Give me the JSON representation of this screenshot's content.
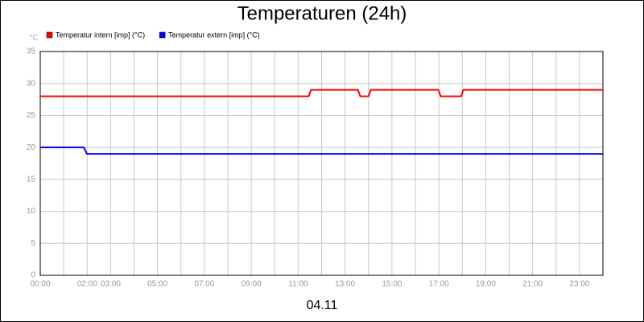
{
  "chart_data": {
    "type": "line",
    "title": "Temperaturen (24h)",
    "y_unit": "°C",
    "x_label": "04.11",
    "xlim": [
      0,
      24
    ],
    "ylim": [
      0,
      35
    ],
    "yticks": [
      0,
      5,
      10,
      15,
      20,
      25,
      30,
      35
    ],
    "xticks": [
      {
        "value": 0,
        "label": "00:00"
      },
      {
        "value": 2,
        "label": "02:00"
      },
      {
        "value": 3,
        "label": "03:00"
      },
      {
        "value": 5,
        "label": "05:00"
      },
      {
        "value": 7,
        "label": "07:00"
      },
      {
        "value": 9,
        "label": "09:00"
      },
      {
        "value": 11,
        "label": "11:00"
      },
      {
        "value": 13,
        "label": "13:00"
      },
      {
        "value": 15,
        "label": "15:00"
      },
      {
        "value": 17,
        "label": "17:00"
      },
      {
        "value": 19,
        "label": "19:00"
      },
      {
        "value": 21,
        "label": "21:00"
      },
      {
        "value": 23,
        "label": "23:00"
      }
    ],
    "xminor": [
      1,
      4,
      6,
      8,
      10,
      12,
      14,
      16,
      18,
      20,
      22,
      24
    ],
    "grid": true,
    "series": [
      {
        "name": "Temperatur intern [imp] (°C)",
        "color": "#ff0000",
        "x": [
          0,
          11.45,
          11.55,
          13.55,
          13.65,
          14.0,
          14.1,
          16.98,
          17.08,
          17.95,
          18.05,
          24
        ],
        "values": [
          28,
          28,
          29,
          29,
          28,
          28,
          29,
          29,
          28,
          28,
          29,
          29
        ]
      },
      {
        "name": "Temperatur extern [imp] (°C)",
        "color": "#0000ff",
        "x": [
          0,
          1.86,
          1.99,
          24
        ],
        "values": [
          20,
          20,
          19,
          19
        ]
      }
    ]
  }
}
